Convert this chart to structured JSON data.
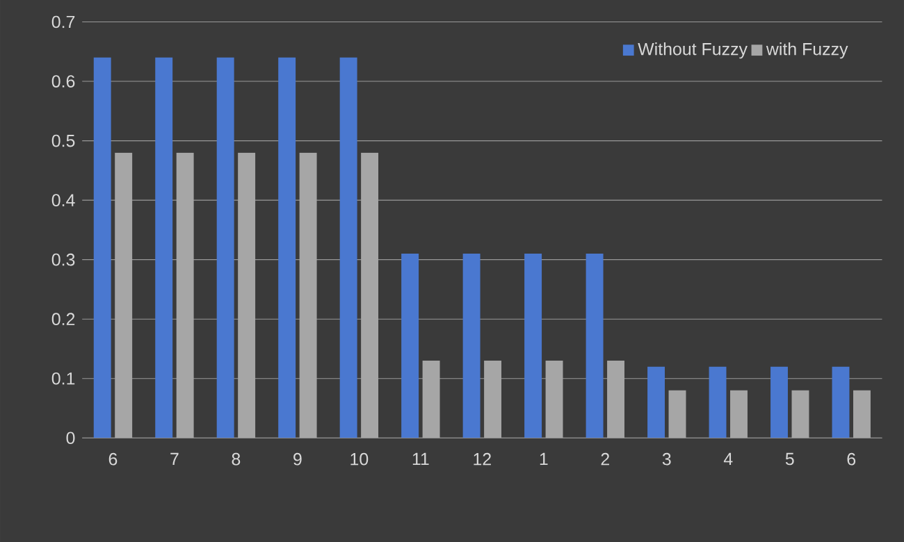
{
  "chart_data": {
    "type": "bar",
    "categories": [
      "6",
      "7",
      "8",
      "9",
      "10",
      "11",
      "12",
      "1",
      "2",
      "3",
      "4",
      "5",
      "6"
    ],
    "series": [
      {
        "name": "Without Fuzzy",
        "color": "#4a78d0",
        "values": [
          0.64,
          0.64,
          0.64,
          0.64,
          0.64,
          0.31,
          0.31,
          0.31,
          0.31,
          0.12,
          0.12,
          0.12,
          0.12
        ]
      },
      {
        "name": "with Fuzzy",
        "color": "#a6a6a6",
        "values": [
          0.48,
          0.48,
          0.48,
          0.48,
          0.48,
          0.13,
          0.13,
          0.13,
          0.13,
          0.08,
          0.08,
          0.08,
          0.08
        ]
      }
    ],
    "ylim": [
      0,
      0.7
    ],
    "yticks": [
      0,
      0.1,
      0.2,
      0.3,
      0.4,
      0.5,
      0.6,
      0.7
    ],
    "grid": "y",
    "legend": "top right"
  }
}
